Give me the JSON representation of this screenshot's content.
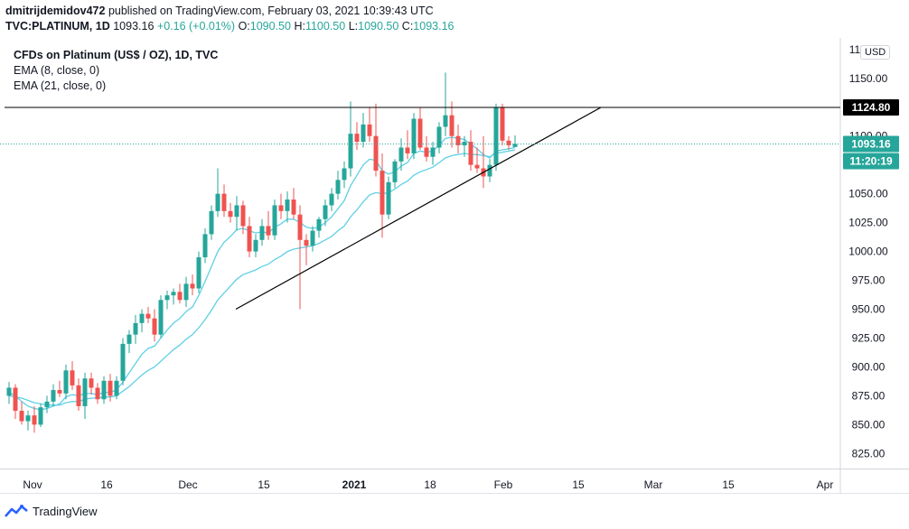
{
  "header": {
    "author": "dmitrijdemidov472",
    "published": "published on TradingView.com, February 03, 2021 10:39:43 UTC",
    "symbol": "TVC:PLATINUM, 1D",
    "last": "1093.16",
    "change": "+0.16 (+0.01%)",
    "o_label": "O:",
    "o_value": "1090.50",
    "h_label": "H:",
    "h_value": "1100.50",
    "l_label": "L:",
    "l_value": "1090.50",
    "c_label": "C:",
    "c_value": "1093.16"
  },
  "legend": {
    "title": "CFDs on Platinum (US$ / OZ), 1D, TVC",
    "ema8": "EMA (8, close, 0)",
    "ema21": "EMA (21, close, 0)"
  },
  "currency_badge": "USD",
  "brand": "TradingView",
  "colors": {
    "up": "#26a69a",
    "down": "#ef5350",
    "ema": "#5fd0e6",
    "line": "#000000"
  },
  "chart_data": {
    "type": "candlestick",
    "price_axis": {
      "ticks": [
        825,
        850,
        875,
        900,
        925,
        950,
        975,
        1000,
        1025,
        1050,
        1075,
        1100,
        1125,
        1150,
        1175
      ],
      "tick_labels": [
        "825.00",
        "850.00",
        "875.00",
        "900.00",
        "925.00",
        "950.00",
        "975.00",
        "1000.00",
        "1025.00",
        "1050.00",
        "1075.00",
        "1100.00",
        "1125.00",
        "1150.00",
        "1175.00"
      ],
      "range": [
        812,
        1185
      ]
    },
    "time_axis": {
      "labels": [
        "Nov",
        "16",
        "Dec",
        "15",
        "2021",
        "18",
        "Feb",
        "15",
        "Mar",
        "15",
        "Apr"
      ]
    },
    "price_labels": [
      {
        "text": "1124.80",
        "value": 1124.8,
        "style": "horizontal-line"
      },
      {
        "text": "1093.16",
        "value": 1093.16,
        "style": "last-price"
      },
      {
        "text": "11:20:19",
        "style": "countdown"
      }
    ],
    "horizontal_line": 1124.8,
    "trendline": {
      "from": {
        "index": 37,
        "value": 950
      },
      "to": {
        "index": 81,
        "value": 1124.8
      }
    },
    "candles": [
      [
        875,
        887,
        868,
        882
      ],
      [
        882,
        885,
        855,
        862
      ],
      [
        862,
        870,
        850,
        853
      ],
      [
        853,
        862,
        845,
        858
      ],
      [
        858,
        866,
        843,
        850
      ],
      [
        850,
        868,
        848,
        865
      ],
      [
        865,
        875,
        860,
        870
      ],
      [
        870,
        885,
        866,
        880
      ],
      [
        880,
        888,
        874,
        877
      ],
      [
        877,
        902,
        872,
        897
      ],
      [
        897,
        905,
        880,
        884
      ],
      [
        884,
        890,
        862,
        866
      ],
      [
        866,
        895,
        855,
        890
      ],
      [
        890,
        895,
        876,
        882
      ],
      [
        882,
        886,
        868,
        872
      ],
      [
        872,
        892,
        868,
        888
      ],
      [
        888,
        894,
        870,
        875
      ],
      [
        875,
        892,
        872,
        888
      ],
      [
        888,
        925,
        884,
        920
      ],
      [
        920,
        932,
        912,
        928
      ],
      [
        928,
        945,
        920,
        938
      ],
      [
        938,
        950,
        930,
        946
      ],
      [
        946,
        952,
        938,
        942
      ],
      [
        942,
        950,
        922,
        928
      ],
      [
        928,
        962,
        925,
        958
      ],
      [
        958,
        966,
        950,
        962
      ],
      [
        962,
        968,
        954,
        965
      ],
      [
        965,
        972,
        955,
        958
      ],
      [
        958,
        978,
        952,
        972
      ],
      [
        972,
        980,
        962,
        968
      ],
      [
        968,
        1000,
        964,
        995
      ],
      [
        995,
        1020,
        990,
        1015
      ],
      [
        1015,
        1040,
        1010,
        1035
      ],
      [
        1035,
        1072,
        1030,
        1050
      ],
      [
        1050,
        1058,
        1030,
        1035
      ],
      [
        1035,
        1042,
        1025,
        1030
      ],
      [
        1030,
        1048,
        1018,
        1040
      ],
      [
        1040,
        1044,
        1015,
        1022
      ],
      [
        1022,
        1030,
        995,
        1000
      ],
      [
        1000,
        1015,
        995,
        1010
      ],
      [
        1010,
        1028,
        1005,
        1022
      ],
      [
        1022,
        1035,
        1010,
        1014
      ],
      [
        1014,
        1045,
        1010,
        1040
      ],
      [
        1040,
        1050,
        1028,
        1035
      ],
      [
        1035,
        1052,
        1025,
        1045
      ],
      [
        1045,
        1055,
        1028,
        1032
      ],
      [
        1032,
        1040,
        950,
        1010
      ],
      [
        1010,
        1015,
        988,
        1005
      ],
      [
        1005,
        1022,
        1000,
        1018
      ],
      [
        1018,
        1030,
        1012,
        1028
      ],
      [
        1028,
        1045,
        1022,
        1040
      ],
      [
        1040,
        1055,
        1035,
        1050
      ],
      [
        1050,
        1070,
        1045,
        1062
      ],
      [
        1062,
        1078,
        1055,
        1072
      ],
      [
        1072,
        1130,
        1065,
        1102
      ],
      [
        1102,
        1112,
        1088,
        1095
      ],
      [
        1095,
        1120,
        1090,
        1110
      ],
      [
        1110,
        1125,
        1095,
        1100
      ],
      [
        1100,
        1128,
        1065,
        1070
      ],
      [
        1070,
        1085,
        1012,
        1032
      ],
      [
        1032,
        1065,
        1028,
        1060
      ],
      [
        1060,
        1080,
        1055,
        1078
      ],
      [
        1078,
        1098,
        1070,
        1090
      ],
      [
        1090,
        1105,
        1080,
        1085
      ],
      [
        1085,
        1120,
        1080,
        1115
      ],
      [
        1115,
        1125,
        1088,
        1090
      ],
      [
        1090,
        1100,
        1078,
        1082
      ],
      [
        1082,
        1095,
        1075,
        1090
      ],
      [
        1090,
        1112,
        1085,
        1108
      ],
      [
        1108,
        1155,
        1100,
        1118
      ],
      [
        1118,
        1130,
        1090,
        1100
      ],
      [
        1100,
        1110,
        1085,
        1092
      ],
      [
        1092,
        1100,
        1082,
        1095
      ],
      [
        1095,
        1105,
        1070,
        1075
      ],
      [
        1075,
        1090,
        1068,
        1072
      ],
      [
        1072,
        1100,
        1055,
        1065
      ],
      [
        1065,
        1080,
        1060,
        1075
      ],
      [
        1075,
        1128,
        1070,
        1125
      ],
      [
        1125,
        1128,
        1092,
        1096
      ],
      [
        1096,
        1100,
        1088,
        1092
      ],
      [
        1090.5,
        1100.5,
        1090.5,
        1093.16
      ]
    ],
    "ema8": [
      878,
      875,
      870,
      866,
      864,
      863,
      864,
      866,
      868,
      874,
      876,
      875,
      877,
      877,
      876,
      878,
      878,
      880,
      887,
      895,
      903,
      911,
      916,
      918,
      925,
      932,
      938,
      942,
      948,
      952,
      962,
      974,
      987,
      1000,
      1008,
      1013,
      1019,
      1020,
      1018,
      1016,
      1017,
      1016,
      1021,
      1024,
      1028,
      1028,
      1025,
      1021,
      1020,
      1021,
      1025,
      1030,
      1037,
      1044,
      1057,
      1066,
      1075,
      1080,
      1079,
      1070,
      1067,
      1069,
      1074,
      1077,
      1085,
      1087,
      1086,
      1087,
      1092,
      1098,
      1099,
      1098,
      1097,
      1093,
      1089,
      1084,
      1081,
      1087,
      1088,
      1089,
      1090
    ],
    "ema21": [
      875,
      874,
      873,
      871,
      869,
      868,
      867,
      867,
      867,
      869,
      870,
      870,
      872,
      873,
      873,
      874,
      874,
      875,
      879,
      883,
      888,
      893,
      897,
      900,
      905,
      910,
      915,
      919,
      924,
      928,
      934,
      941,
      949,
      958,
      964,
      970,
      976,
      980,
      982,
      984,
      987,
      989,
      993,
      996,
      1000,
      1002,
      1003,
      1004,
      1005,
      1007,
      1010,
      1013,
      1018,
      1022,
      1030,
      1036,
      1043,
      1049,
      1051,
      1050,
      1051,
      1054,
      1058,
      1061,
      1066,
      1069,
      1071,
      1073,
      1077,
      1081,
      1083,
      1084,
      1085,
      1084,
      1084,
      1083,
      1082,
      1085,
      1086,
      1087,
      1088
    ]
  }
}
